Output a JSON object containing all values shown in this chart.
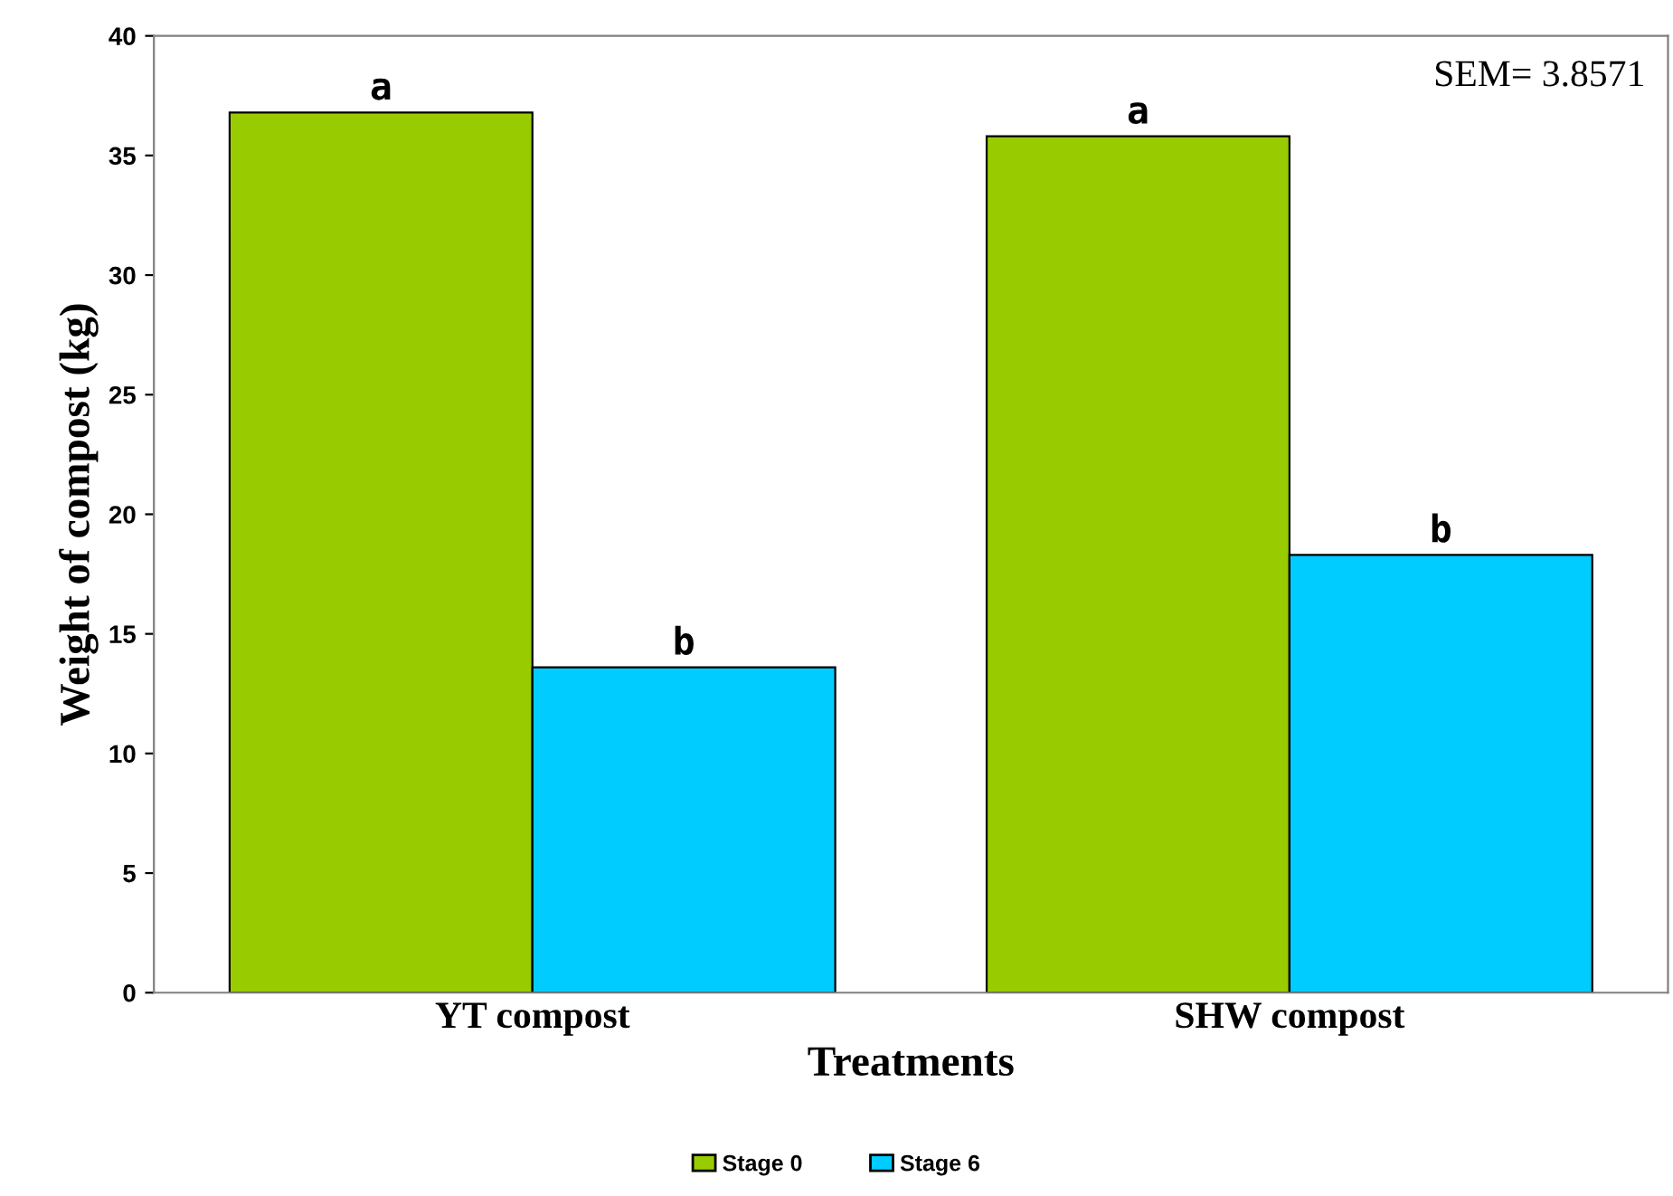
{
  "chart_data": {
    "type": "bar",
    "xlabel": "Treatments",
    "ylabel": "Weight of compost (kg)",
    "categories": [
      "YT compost",
      "SHW compost"
    ],
    "series": [
      {
        "name": "Stage 0",
        "color": "#99cc00",
        "values": [
          36.8,
          35.8
        ]
      },
      {
        "name": "Stage 6",
        "color": "#00ccff",
        "values": [
          13.6,
          18.3
        ]
      }
    ],
    "ylim": [
      0,
      40
    ],
    "yticks": [
      0,
      5,
      10,
      15,
      20,
      25,
      30,
      35,
      40
    ],
    "grid": false,
    "legend": "bottom",
    "annotations": [
      "a",
      "b",
      "a",
      "b",
      "SEM= 3.8571"
    ]
  }
}
